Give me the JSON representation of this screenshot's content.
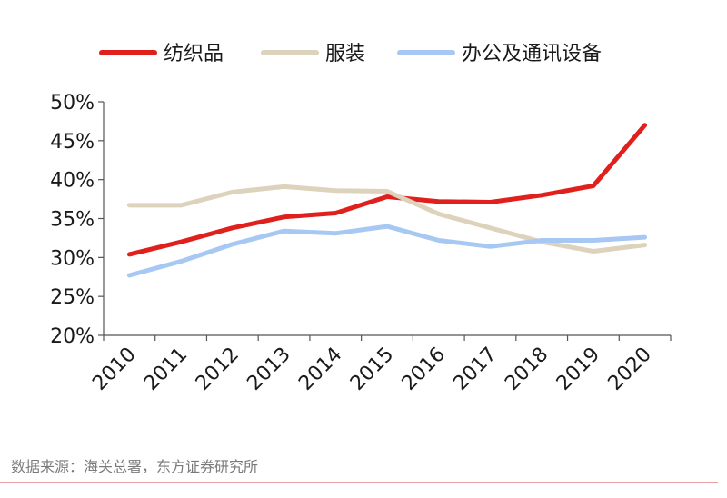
{
  "chart_data": {
    "type": "line",
    "title": "",
    "xlabel": "",
    "ylabel": "",
    "categories": [
      "2010",
      "2011",
      "2012",
      "2013",
      "2014",
      "2015",
      "2016",
      "2017",
      "2018",
      "2019",
      "2020"
    ],
    "ylim": [
      20,
      50
    ],
    "yticks": [
      "20%",
      "25%",
      "30%",
      "35%",
      "40%",
      "45%",
      "50%"
    ],
    "grid": false,
    "legend_position": "top",
    "series": [
      {
        "name": "纺织品",
        "color": "#e0201c",
        "values": [
          30.4,
          32.0,
          33.8,
          35.2,
          35.7,
          37.8,
          37.2,
          37.1,
          38.0,
          39.2,
          47.0
        ]
      },
      {
        "name": "服装",
        "color": "#ddd3bd",
        "values": [
          36.7,
          36.7,
          38.4,
          39.1,
          38.6,
          38.5,
          35.6,
          33.8,
          32.0,
          30.8,
          31.6
        ]
      },
      {
        "name": "办公及通讯设备",
        "color": "#a8c8f4",
        "values": [
          27.7,
          29.5,
          31.7,
          33.4,
          33.1,
          34.0,
          32.2,
          31.4,
          32.2,
          32.2,
          32.6
        ]
      }
    ]
  },
  "source": "数据来源：海关总署，东方证券研究所"
}
